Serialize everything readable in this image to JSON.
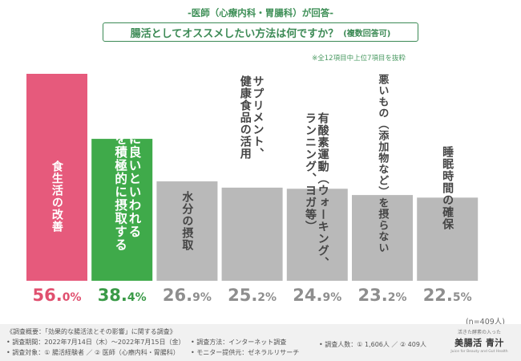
{
  "header": {
    "subtitle": "-医師（心療内科・胃腸科）が回答-",
    "title": "腸活としてオススメしたい方法は何ですか？",
    "title_note": "(複数回答可)",
    "corner_note": "※全12項目中上位7項目を抜粋"
  },
  "chart_data": {
    "type": "bar",
    "categories": [
      "食生活の改善",
      "腸活に良いといわれる食品を積極的に摂取する",
      "水分の摂取",
      "サプリメント、健康食品の活用",
      "有酸素運動（ウォーキング、ランニング、ヨガ等）",
      "悪いもの（添加物など）を摂らない",
      "睡眠時間の確保"
    ],
    "values": [
      56.0,
      38.4,
      26.9,
      25.2,
      24.9,
      23.2,
      22.5
    ],
    "value_labels": [
      {
        "int": "56.",
        "dec": "0%"
      },
      {
        "int": "38.",
        "dec": "4%"
      },
      {
        "int": "26.",
        "dec": "9%"
      },
      {
        "int": "25.",
        "dec": "2%"
      },
      {
        "int": "24.",
        "dec": "9%"
      },
      {
        "int": "23.",
        "dec": "2%"
      },
      {
        "int": "22.",
        "dec": "5%"
      }
    ],
    "label_lines": [
      [
        "食生活の改善"
      ],
      [
        "腸活に良いといわれる",
        "食品を積極的に摂取する"
      ],
      [
        "水分の摂取"
      ],
      [
        "サプリメント、",
        "健康食品の活用"
      ],
      [
        "有酸素運動（ウォーキング、",
        "ランニング、ヨガ等）"
      ],
      [
        "悪いもの（添加物など）を摂らない"
      ],
      [
        "睡眠時間の確保"
      ]
    ],
    "bar_colors": [
      "#e65a7c",
      "#3faa4a",
      "#b9b9b9",
      "#b9b9b9",
      "#b9b9b9",
      "#b9b9b9",
      "#b9b9b9"
    ],
    "value_colors": [
      "#e0506f",
      "#3a9a47",
      "#8e8e8e",
      "#8e8e8e",
      "#8e8e8e",
      "#8e8e8e",
      "#8e8e8e"
    ],
    "label_colors": [
      "#ffffff",
      "#ffffff",
      "#444444",
      "#444444",
      "#444444",
      "#444444",
      "#444444"
    ],
    "ylim": [
      0,
      56.0
    ],
    "n_note": "(n=409人)"
  },
  "footer": {
    "overview": "《調査概要：「効果的な腸活法とその影響」に関する調査》",
    "period": "• 調査期間：2022年7月14日（木）〜2022年7月15日（金）",
    "target": "• 調査対象：① 腸活経験者 ／ ② 医師（心療内科・胃腸科）",
    "method": "• 調査方法：インターネット調査",
    "provider": "• モニター提供元：ゼネラルリサーチ",
    "count": "• 調査人数：① 1,606人 ／ ② 409人"
  },
  "logo": {
    "top": "活きた酵素の入った",
    "brand": "美腸活 青汁",
    "bottom": "Juice for Beauty and Gut Health"
  }
}
